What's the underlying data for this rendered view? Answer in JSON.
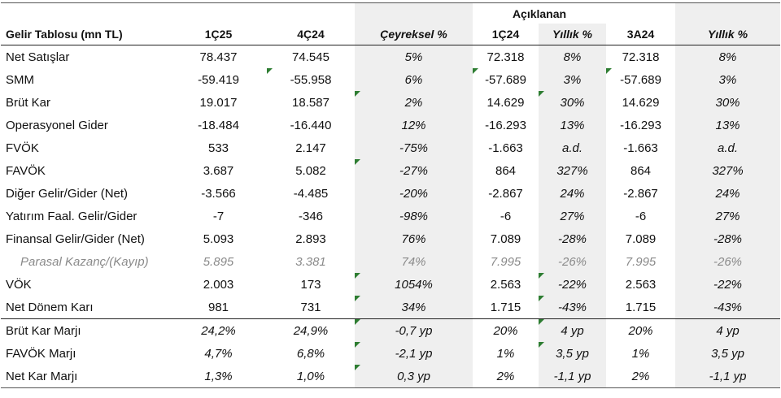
{
  "header": {
    "group": "Açıklanan",
    "columns": [
      "Gelir Tablosu (mn TL)",
      "1Ç25",
      "4Ç24",
      "Çeyreksel %",
      "1Ç24",
      "Yıllık %",
      "3A24",
      "Yıllık %"
    ]
  },
  "rows": [
    {
      "label": "Net Satışlar",
      "cells": [
        "78.437",
        "74.545",
        "5%",
        "72.318",
        "8%",
        "72.318",
        "8%"
      ]
    },
    {
      "label": "SMM",
      "cells": [
        "-59.419",
        "-55.958",
        "6%",
        "-57.689",
        "3%",
        "-57.689",
        "3%"
      ]
    },
    {
      "label": "Brüt Kar",
      "cells": [
        "19.017",
        "18.587",
        "2%",
        "14.629",
        "30%",
        "14.629",
        "30%"
      ]
    },
    {
      "label": "Operasyonel Gider",
      "cells": [
        "-18.484",
        "-16.440",
        "12%",
        "-16.293",
        "13%",
        "-16.293",
        "13%"
      ]
    },
    {
      "label": "FVÖK",
      "cells": [
        "533",
        "2.147",
        "-75%",
        "-1.663",
        "a.d.",
        "-1.663",
        "a.d."
      ]
    },
    {
      "label": "FAVÖK",
      "cells": [
        "3.687",
        "5.082",
        "-27%",
        "864",
        "327%",
        "864",
        "327%"
      ]
    },
    {
      "label": "Diğer Gelir/Gider (Net)",
      "cells": [
        "-3.566",
        "-4.485",
        "-20%",
        "-2.867",
        "24%",
        "-2.867",
        "24%"
      ]
    },
    {
      "label": "Yatırım Faal. Gelir/Gider",
      "cells": [
        "-7",
        "-346",
        "-98%",
        "-6",
        "27%",
        "-6",
        "27%"
      ]
    },
    {
      "label": "Finansal Gelir/Gider (Net)",
      "cells": [
        "5.093",
        "2.893",
        "76%",
        "7.089",
        "-28%",
        "7.089",
        "-28%"
      ]
    },
    {
      "label": "Parasal Kazanç/(Kayıp)",
      "cells": [
        "5.895",
        "3.381",
        "74%",
        "7.995",
        "-26%",
        "7.995",
        "-26%"
      ]
    },
    {
      "label": "VÖK",
      "cells": [
        "2.003",
        "173",
        "1054%",
        "2.563",
        "-22%",
        "2.563",
        "-22%"
      ]
    },
    {
      "label": "Net Dönem Karı",
      "cells": [
        "981",
        "731",
        "34%",
        "1.715",
        "-43%",
        "1.715",
        "-43%"
      ]
    },
    {
      "label": "Brüt Kar Marjı",
      "cells": [
        "24,2%",
        "24,9%",
        "-0,7 yp",
        "20%",
        "4 yp",
        "20%",
        "4 yp"
      ]
    },
    {
      "label": "FAVÖK Marjı",
      "cells": [
        "4,7%",
        "6,8%",
        "-2,1 yp",
        "1%",
        "3,5 yp",
        "1%",
        "3,5 yp"
      ]
    },
    {
      "label": "Net Kar Marjı",
      "cells": [
        "1,3%",
        "1,0%",
        "0,3 yp",
        "2%",
        "-1,1 yp",
        "2%",
        "-1,1 yp"
      ]
    }
  ]
}
